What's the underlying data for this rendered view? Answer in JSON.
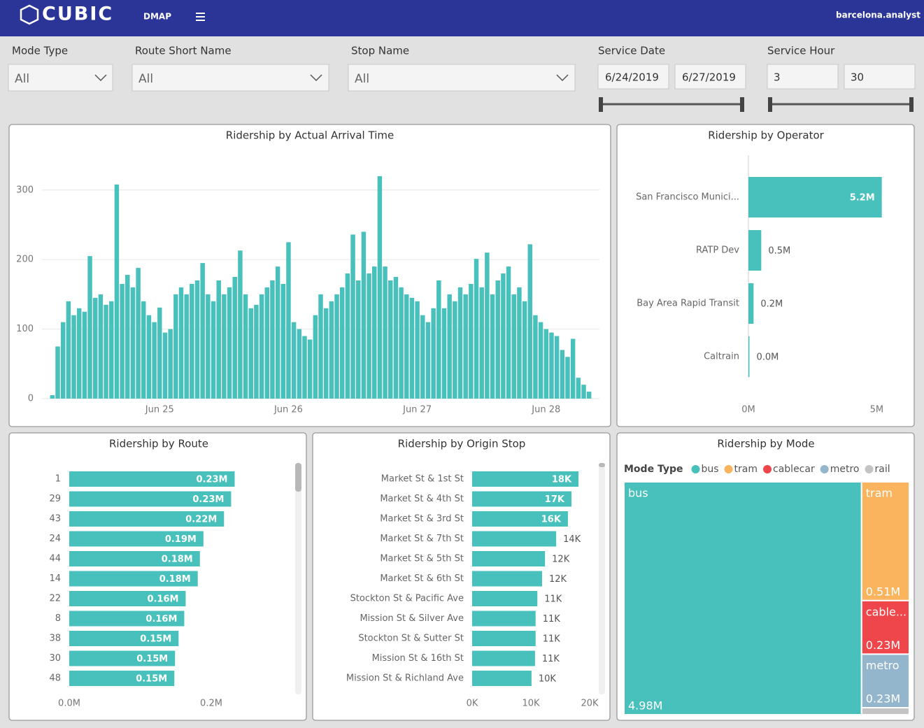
{
  "header": {
    "logo": "CUBIC",
    "app": "DMAP",
    "user": "barcelona.analyst"
  },
  "filters": [
    {
      "label": "Mode Type",
      "value": "All"
    },
    {
      "label": "Route Short Name",
      "value": "All"
    },
    {
      "label": "Stop Name",
      "value": "All"
    },
    {
      "label": "Service Date",
      "values": [
        "6/24/2019",
        "6/27/2019"
      ]
    },
    {
      "label": "Service Hour",
      "values": [
        "3",
        "30"
      ]
    }
  ],
  "chart_data": [
    {
      "type": "column",
      "title": "Ridership by Actual Arrival Time",
      "color": "#48c0bb",
      "grid": true,
      "categories": [
        null,
        null,
        null,
        null,
        null,
        null,
        null,
        null,
        null,
        null,
        null,
        null,
        null,
        null,
        null,
        null,
        null,
        null,
        null,
        null,
        "Jun 25",
        null,
        null,
        null,
        null,
        null,
        null,
        null,
        null,
        null,
        null,
        null,
        null,
        null,
        null,
        null,
        null,
        null,
        null,
        null,
        null,
        null,
        null,
        null,
        "Jun 26",
        null,
        null,
        null,
        null,
        null,
        null,
        null,
        null,
        null,
        null,
        null,
        null,
        null,
        null,
        null,
        null,
        null,
        null,
        null,
        null,
        null,
        null,
        null,
        "Jun 27",
        null,
        null,
        null,
        null,
        null,
        null,
        null,
        null,
        null,
        null,
        null,
        null,
        null,
        null,
        null,
        null,
        null,
        null,
        null,
        null,
        null,
        null,
        null,
        "Jun 28",
        null,
        null,
        null,
        null,
        null,
        null,
        null,
        null
      ],
      "values": [
        5,
        75,
        110,
        140,
        120,
        130,
        125,
        205,
        145,
        150,
        135,
        140,
        308,
        165,
        178,
        160,
        188,
        140,
        120,
        110,
        131,
        95,
        100,
        150,
        160,
        150,
        165,
        170,
        195,
        150,
        140,
        170,
        150,
        160,
        175,
        213,
        150,
        130,
        135,
        150,
        160,
        170,
        190,
        165,
        225,
        110,
        100,
        90,
        85,
        120,
        150,
        130,
        140,
        150,
        160,
        180,
        236,
        170,
        240,
        180,
        190,
        320,
        190,
        170,
        175,
        160,
        150,
        145,
        140,
        120,
        110,
        130,
        170,
        130,
        150,
        140,
        160,
        150,
        165,
        201,
        160,
        210,
        150,
        170,
        180,
        190,
        150,
        160,
        140,
        222,
        120,
        110,
        100,
        95,
        90,
        70,
        60,
        86,
        30,
        20,
        10
      ],
      "ylim": [
        0,
        340
      ],
      "yticks": [
        0,
        100,
        200,
        300
      ]
    },
    {
      "type": "hbar",
      "title": "Ridership by Operator",
      "color": "#48c0bb",
      "zero_line": true,
      "categories": [
        "San Francisco Munici...",
        "RATP Dev",
        "Bay Area Rapid Transit",
        "Caltrain"
      ],
      "values": [
        5200000,
        500000,
        200000,
        40000
      ],
      "value_labels": [
        "5.2M",
        "0.5M",
        "0.2M",
        "0.0M"
      ],
      "xlim": [
        0,
        6000000
      ],
      "xticks": [
        {
          "value": 0,
          "label": "0M"
        },
        {
          "value": 5000000,
          "label": "5M"
        }
      ]
    },
    {
      "type": "hbar",
      "title": "Ridership by Route",
      "color": "#48c0bb",
      "categories": [
        "1",
        "29",
        "43",
        "24",
        "44",
        "14",
        "22",
        "8",
        "38",
        "30",
        "48"
      ],
      "values": [
        233000,
        228000,
        218000,
        189000,
        184000,
        181000,
        164000,
        162000,
        154000,
        149000,
        148000
      ],
      "value_labels": [
        "0.23M",
        "0.23M",
        "0.22M",
        "0.19M",
        "0.18M",
        "0.18M",
        "0.16M",
        "0.16M",
        "0.15M",
        "0.15M",
        "0.15M"
      ],
      "xlim": [
        0,
        300000
      ],
      "xticks": [
        {
          "value": 0,
          "label": "0.0M"
        },
        {
          "value": 200000,
          "label": "0.2M"
        }
      ]
    },
    {
      "type": "hbar",
      "title": "Ridership by Origin Stop",
      "color": "#48c0bb",
      "categories": [
        "Market St & 1st St",
        "Market St & 4th St",
        "Market St & 3rd St",
        "Market St & 7th St",
        "Market St & 5th St",
        "Market St & 6th St",
        "Stockton St & Pacific Ave",
        "Mission St & Silver Ave",
        "Stockton St & Sutter St",
        "Mission St & 16th St",
        "Mission St & Richland Ave"
      ],
      "values": [
        18100,
        16900,
        16300,
        14300,
        12400,
        11900,
        11100,
        10800,
        10800,
        10700,
        10100
      ],
      "value_labels": [
        "18K",
        "17K",
        "16K",
        "14K",
        "12K",
        "12K",
        "11K",
        "11K",
        "11K",
        "11K",
        "10K"
      ],
      "xlim": [
        0,
        20000
      ],
      "xticks": [
        {
          "value": 0,
          "label": "0K"
        },
        {
          "value": 10000,
          "label": "10K"
        },
        {
          "value": 20000,
          "label": "20K"
        }
      ]
    },
    {
      "type": "treemap",
      "title": "Ridership by Mode",
      "legend_title": "Mode Type",
      "categories": [
        "bus",
        "tram",
        "cablecar",
        "metro",
        "rail"
      ],
      "tile_labels": [
        "bus",
        "tram",
        "cable...",
        "metro",
        null
      ],
      "values": [
        4980000,
        510000,
        230000,
        230000,
        30000
      ],
      "value_labels": [
        "4.98M",
        "0.51M",
        "0.23M",
        "0.23M",
        null
      ],
      "colors": [
        "#48c0bb",
        "#fbb45e",
        "#ef464b",
        "#94b6cc",
        "#c4c4c4"
      ]
    }
  ]
}
